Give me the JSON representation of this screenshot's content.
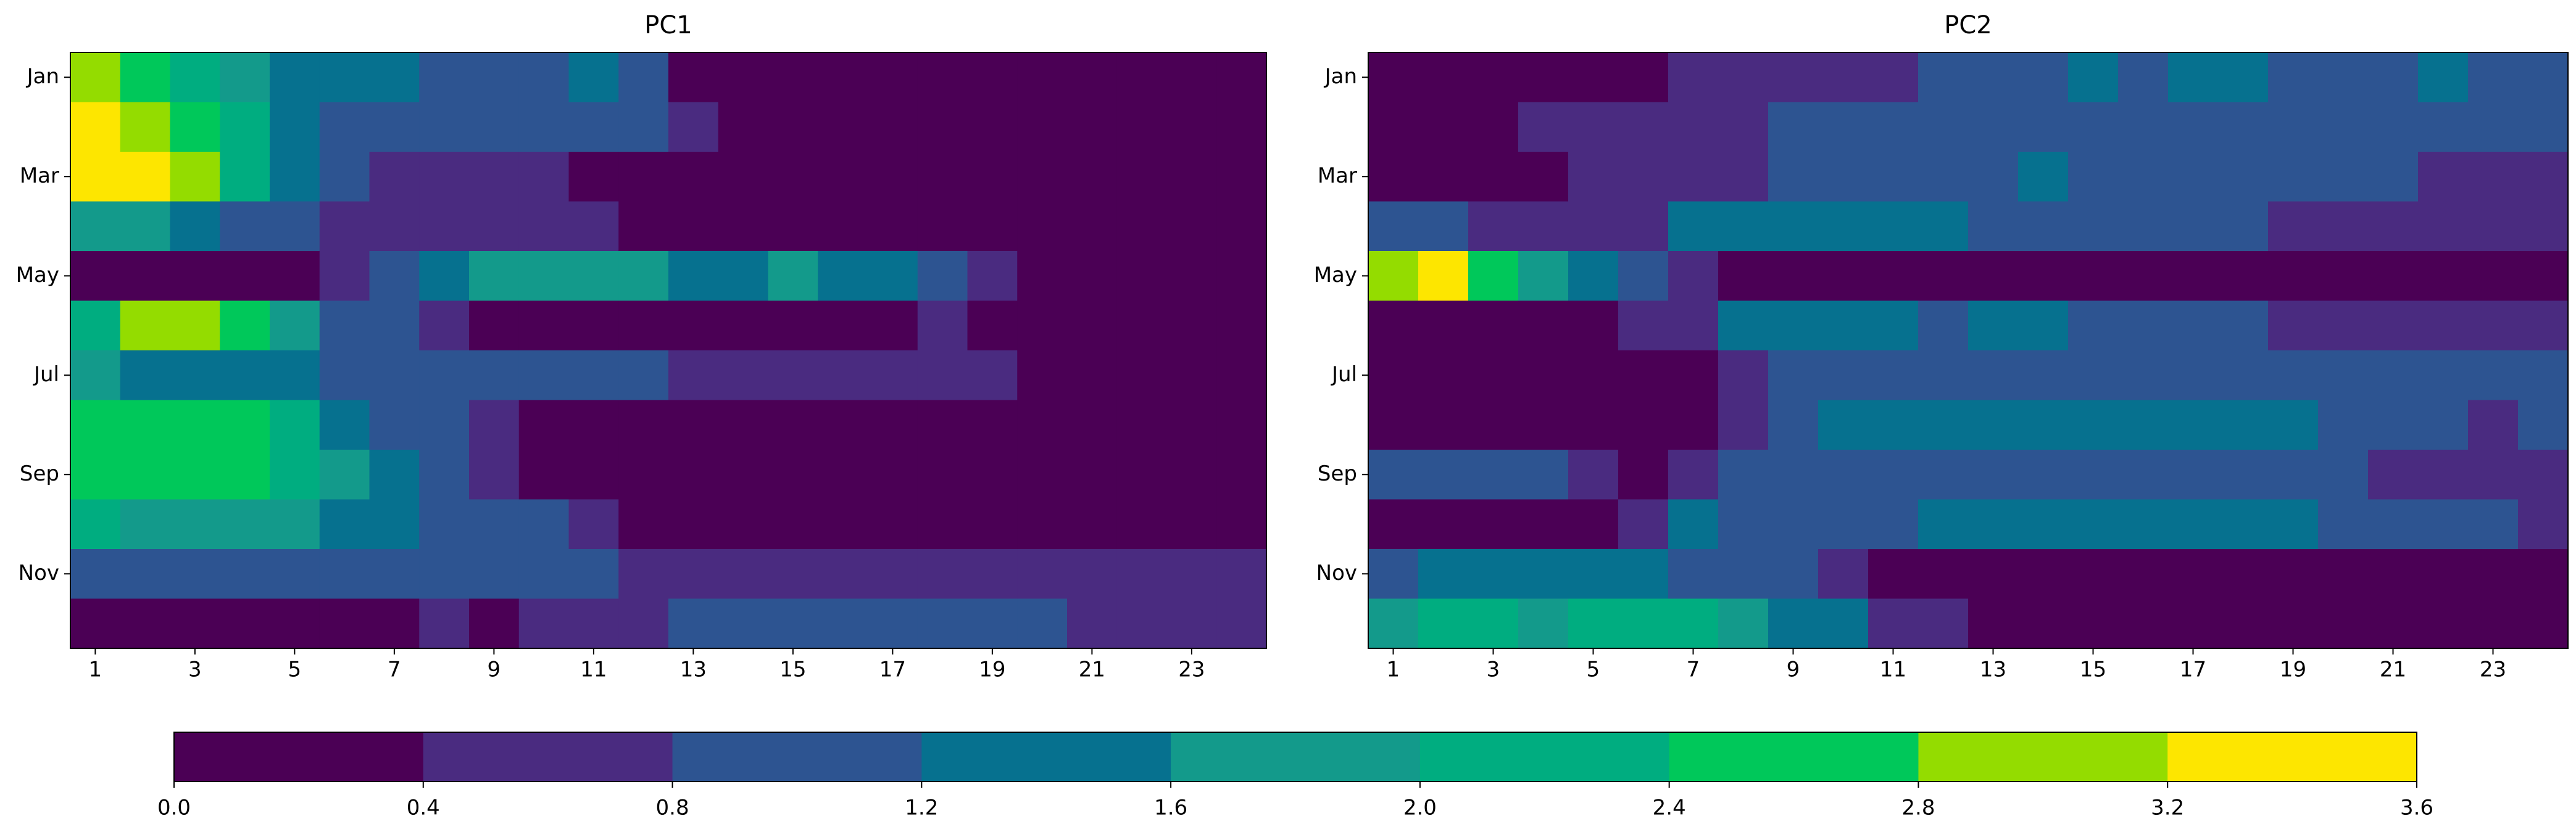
{
  "chart_data": [
    {
      "type": "contour",
      "title": "PC1",
      "x": [
        1,
        2,
        3,
        4,
        5,
        6,
        7,
        8,
        9,
        10,
        11,
        12,
        13,
        14,
        15,
        16,
        17,
        18,
        19,
        20,
        21,
        22,
        23,
        24
      ],
      "y": [
        1,
        2,
        3,
        4,
        5,
        6,
        7,
        8,
        9,
        10,
        11,
        12
      ],
      "z": [
        [
          3.0,
          2.6,
          2.2,
          1.8,
          1.4,
          1.4,
          1.4,
          1.1,
          1.1,
          1.1,
          1.4,
          1.0,
          0.2,
          0.2,
          0.2,
          0.2,
          0.2,
          0.2,
          0.2,
          0.2,
          0.2,
          0.2,
          0.2,
          0.2
        ],
        [
          3.3,
          3.0,
          2.6,
          2.0,
          1.4,
          1.0,
          1.0,
          1.0,
          1.0,
          0.9,
          0.9,
          0.9,
          0.6,
          0.2,
          0.2,
          0.2,
          0.2,
          0.2,
          0.2,
          0.2,
          0.2,
          0.2,
          0.2,
          0.2
        ],
        [
          3.5,
          3.4,
          3.0,
          2.2,
          1.4,
          0.9,
          0.6,
          0.6,
          0.6,
          0.6,
          0.2,
          0.2,
          0.2,
          0.2,
          0.2,
          0.2,
          0.2,
          0.2,
          0.2,
          0.2,
          0.2,
          0.2,
          0.2,
          0.2
        ],
        [
          1.8,
          1.8,
          1.4,
          1.0,
          0.9,
          0.6,
          0.6,
          0.6,
          0.6,
          0.6,
          0.6,
          0.2,
          0.2,
          0.2,
          0.2,
          0.2,
          0.2,
          0.2,
          0.2,
          0.2,
          0.2,
          0.2,
          0.2,
          0.2
        ],
        [
          0.2,
          0.2,
          0.2,
          0.2,
          0.2,
          0.6,
          1.0,
          1.4,
          1.7,
          1.7,
          1.7,
          1.7,
          1.5,
          1.5,
          1.7,
          1.5,
          1.2,
          0.9,
          0.5,
          0.2,
          0.2,
          0.2,
          0.2,
          0.2
        ],
        [
          2.2,
          3.0,
          2.9,
          2.6,
          1.8,
          1.0,
          0.9,
          0.6,
          0.2,
          0.2,
          0.2,
          0.2,
          0.2,
          0.2,
          0.2,
          0.2,
          0.2,
          0.5,
          0.3,
          0.2,
          0.2,
          0.2,
          0.2,
          0.2
        ],
        [
          1.8,
          1.4,
          1.4,
          1.4,
          1.3,
          1.0,
          0.9,
          0.9,
          0.9,
          0.9,
          0.9,
          0.9,
          0.7,
          0.7,
          0.7,
          0.7,
          0.7,
          0.6,
          0.5,
          0.2,
          0.2,
          0.2,
          0.2,
          0.2
        ],
        [
          2.6,
          2.5,
          2.5,
          2.5,
          2.1,
          1.5,
          1.0,
          0.9,
          0.5,
          0.2,
          0.2,
          0.2,
          0.2,
          0.2,
          0.2,
          0.2,
          0.2,
          0.2,
          0.2,
          0.2,
          0.2,
          0.2,
          0.2,
          0.2
        ],
        [
          2.6,
          2.6,
          2.6,
          2.6,
          2.2,
          1.6,
          1.2,
          0.9,
          0.5,
          0.2,
          0.2,
          0.2,
          0.2,
          0.2,
          0.2,
          0.2,
          0.2,
          0.2,
          0.2,
          0.2,
          0.2,
          0.2,
          0.2,
          0.2
        ],
        [
          2.0,
          1.8,
          1.8,
          1.8,
          1.8,
          1.3,
          1.2,
          1.0,
          1.0,
          0.9,
          0.6,
          0.2,
          0.2,
          0.2,
          0.2,
          0.2,
          0.2,
          0.2,
          0.2,
          0.2,
          0.2,
          0.2,
          0.2,
          0.2
        ],
        [
          1.0,
          1.0,
          1.0,
          1.0,
          1.0,
          0.9,
          0.9,
          0.9,
          0.9,
          0.9,
          0.9,
          0.6,
          0.6,
          0.6,
          0.6,
          0.6,
          0.6,
          0.6,
          0.6,
          0.6,
          0.6,
          0.6,
          0.6,
          0.6
        ],
        [
          0.2,
          0.2,
          0.2,
          0.2,
          0.2,
          0.2,
          0.2,
          0.6,
          0.2,
          0.6,
          0.6,
          0.6,
          1.0,
          1.0,
          1.0,
          1.0,
          1.0,
          1.0,
          1.0,
          1.0,
          0.6,
          0.6,
          0.6,
          0.6
        ]
      ],
      "xlim": [
        0.5,
        24.5
      ],
      "ylim": [
        12.5,
        0.5
      ],
      "xticks": [
        1,
        3,
        5,
        7,
        9,
        11,
        13,
        15,
        17,
        19,
        21,
        23
      ],
      "yticks": [
        {
          "value": 1,
          "label": "Jan"
        },
        {
          "value": 3,
          "label": "Mar"
        },
        {
          "value": 5,
          "label": "May"
        },
        {
          "value": 7,
          "label": "Jul"
        },
        {
          "value": 9,
          "label": "Sep"
        },
        {
          "value": 11,
          "label": "Nov"
        }
      ]
    },
    {
      "type": "contour",
      "title": "PC2",
      "x": [
        1,
        2,
        3,
        4,
        5,
        6,
        7,
        8,
        9,
        10,
        11,
        12,
        13,
        14,
        15,
        16,
        17,
        18,
        19,
        20,
        21,
        22,
        23,
        24
      ],
      "y": [
        1,
        2,
        3,
        4,
        5,
        6,
        7,
        8,
        9,
        10,
        11,
        12
      ],
      "z": [
        [
          0.2,
          0.2,
          0.2,
          0.2,
          0.2,
          0.2,
          0.6,
          0.6,
          0.6,
          0.6,
          0.6,
          1.0,
          1.0,
          1.0,
          1.3,
          1.0,
          1.3,
          1.3,
          1.0,
          1.0,
          1.0,
          1.3,
          1.0,
          1.0
        ],
        [
          0.2,
          0.2,
          0.2,
          0.6,
          0.6,
          0.6,
          0.6,
          0.6,
          1.0,
          1.0,
          1.0,
          1.0,
          1.0,
          1.0,
          1.0,
          1.0,
          1.0,
          1.0,
          1.0,
          1.0,
          1.0,
          1.0,
          1.0,
          1.0
        ],
        [
          0.2,
          0.2,
          0.2,
          0.2,
          0.6,
          0.6,
          0.6,
          0.6,
          1.0,
          1.0,
          1.0,
          1.0,
          1.0,
          1.3,
          1.0,
          1.0,
          1.0,
          1.0,
          1.0,
          1.0,
          0.9,
          0.6,
          0.6,
          0.6
        ],
        [
          1.0,
          0.9,
          0.6,
          0.6,
          0.6,
          0.6,
          1.3,
          1.3,
          1.3,
          1.3,
          1.3,
          1.3,
          1.0,
          1.0,
          1.0,
          1.0,
          1.0,
          1.0,
          0.6,
          0.6,
          0.6,
          0.6,
          0.6,
          0.6
        ],
        [
          2.8,
          3.4,
          2.4,
          1.8,
          1.4,
          0.9,
          0.5,
          0.2,
          0.2,
          0.2,
          0.2,
          0.2,
          0.2,
          0.2,
          0.2,
          0.2,
          0.2,
          0.2,
          0.2,
          0.2,
          0.2,
          0.2,
          0.2,
          0.2
        ],
        [
          0.2,
          0.2,
          0.2,
          0.2,
          0.2,
          0.6,
          0.6,
          1.3,
          1.3,
          1.3,
          1.3,
          1.0,
          1.3,
          1.3,
          1.0,
          1.0,
          1.0,
          1.0,
          0.6,
          0.6,
          0.6,
          0.6,
          0.6,
          0.6
        ],
        [
          0.2,
          0.2,
          0.2,
          0.2,
          0.2,
          0.2,
          0.2,
          0.6,
          1.0,
          1.0,
          1.0,
          1.0,
          1.0,
          1.0,
          1.0,
          1.0,
          1.0,
          1.0,
          1.0,
          1.0,
          1.0,
          1.0,
          1.0,
          1.0
        ],
        [
          0.2,
          0.2,
          0.2,
          0.2,
          0.2,
          0.2,
          0.2,
          0.6,
          1.0,
          1.3,
          1.3,
          1.3,
          1.3,
          1.3,
          1.3,
          1.3,
          1.3,
          1.3,
          1.3,
          1.0,
          1.0,
          1.0,
          0.6,
          1.0
        ],
        [
          1.0,
          1.0,
          1.0,
          1.0,
          0.6,
          0.2,
          0.6,
          1.0,
          1.0,
          1.0,
          1.0,
          1.0,
          1.0,
          1.0,
          1.0,
          1.0,
          1.0,
          1.0,
          1.0,
          1.0,
          0.6,
          0.6,
          0.6,
          0.6
        ],
        [
          0.2,
          0.2,
          0.2,
          0.2,
          0.2,
          0.6,
          1.3,
          1.0,
          1.0,
          1.0,
          1.0,
          1.3,
          1.3,
          1.3,
          1.3,
          1.3,
          1.3,
          1.3,
          1.3,
          1.0,
          1.0,
          1.0,
          1.0,
          0.6
        ],
        [
          1.0,
          1.4,
          1.4,
          1.4,
          1.4,
          1.4,
          1.0,
          1.0,
          1.0,
          0.6,
          0.2,
          0.2,
          0.2,
          0.2,
          0.2,
          0.2,
          0.2,
          0.2,
          0.2,
          0.2,
          0.2,
          0.2,
          0.2,
          0.2
        ],
        [
          1.8,
          2.0,
          2.0,
          1.8,
          2.1,
          2.1,
          2.1,
          1.8,
          1.4,
          1.4,
          0.6,
          0.6,
          0.2,
          0.2,
          0.2,
          0.2,
          0.2,
          0.2,
          0.2,
          0.2,
          0.2,
          0.2,
          0.2,
          0.2
        ]
      ],
      "xlim": [
        0.5,
        24.5
      ],
      "ylim": [
        12.5,
        0.5
      ],
      "xticks": [
        1,
        3,
        5,
        7,
        9,
        11,
        13,
        15,
        17,
        19,
        21,
        23
      ],
      "yticks": [
        {
          "value": 1,
          "label": "Jan"
        },
        {
          "value": 3,
          "label": "Mar"
        },
        {
          "value": 5,
          "label": "May"
        },
        {
          "value": 7,
          "label": "Jul"
        },
        {
          "value": 9,
          "label": "Sep"
        },
        {
          "value": 11,
          "label": "Nov"
        }
      ]
    }
  ],
  "colorbar": {
    "ticks": [
      {
        "value": 0,
        "label": "0.0"
      },
      0.4,
      0.8,
      1.2,
      1.6,
      {
        "value": 2,
        "label": "2.0"
      },
      2.4,
      2.8,
      3.2,
      3.6
    ],
    "colors": [
      "#4b0055",
      "#4a2b80",
      "#2d5491",
      "#06718f",
      "#139a8b",
      "#00ad80",
      "#00c85a",
      "#94dc00",
      "#fde600"
    ]
  }
}
